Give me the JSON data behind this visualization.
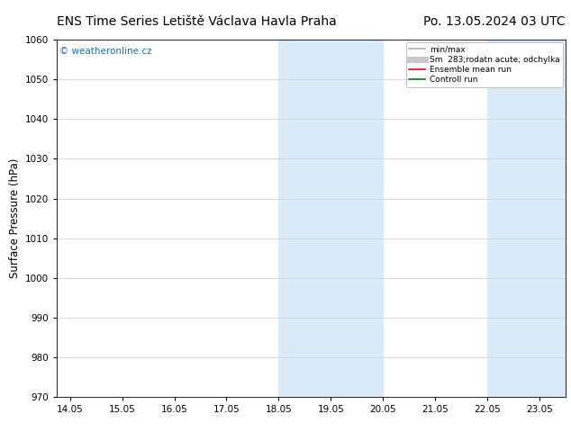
{
  "title_left": "ENS Time Series Letiště Václava Havla Praha",
  "title_right": "Po. 13.05.2024 03 UTC",
  "ylabel": "Surface Pressure (hPa)",
  "ylim": [
    970,
    1060
  ],
  "yticks": [
    970,
    980,
    990,
    1000,
    1010,
    1020,
    1030,
    1040,
    1050,
    1060
  ],
  "xlim_start": 13.8,
  "xlim_end": 23.55,
  "xtick_labels": [
    "14.05",
    "15.05",
    "16.05",
    "17.05",
    "18.05",
    "19.05",
    "20.05",
    "21.05",
    "22.05",
    "23.05"
  ],
  "xtick_positions": [
    14.05,
    15.05,
    16.05,
    17.05,
    18.05,
    19.05,
    20.05,
    21.05,
    22.05,
    23.05
  ],
  "shaded_regions": [
    {
      "xmin": 18.05,
      "xmax": 20.05,
      "color": "#daeaf7"
    },
    {
      "xmin": 22.05,
      "xmax": 23.55,
      "color": "#daeaf7"
    }
  ],
  "watermark_text": "© weatheronline.cz",
  "watermark_color": "#1a6fc4",
  "legend_entries": [
    {
      "label": "min/max",
      "color": "#b0b0b0",
      "lw": 1.2,
      "style": "line"
    },
    {
      "label": "Sm  283;rodatn acute; odchylka",
      "color": "#c8c8c8",
      "lw": 5,
      "style": "line"
    },
    {
      "label": "Ensemble mean run",
      "color": "red",
      "lw": 1.2,
      "style": "line"
    },
    {
      "label": "Controll run",
      "color": "green",
      "lw": 1.2,
      "style": "line"
    }
  ],
  "bg_color": "#ffffff",
  "plot_bg_color": "#ffffff",
  "grid_color": "#cccccc",
  "border_color": "#333333",
  "title_fontsize": 10,
  "tick_fontsize": 7.5,
  "ylabel_fontsize": 8.5
}
